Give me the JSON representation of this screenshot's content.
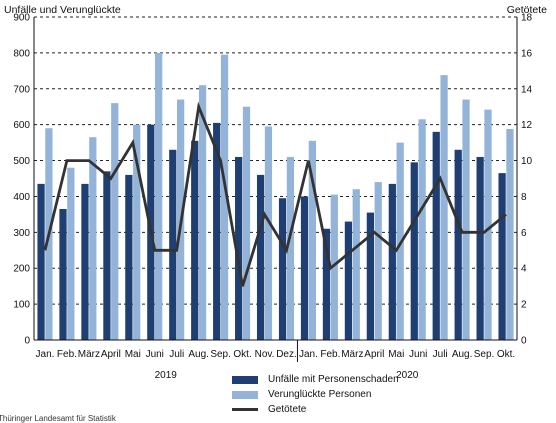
{
  "chart_data": {
    "type": "bar",
    "left_axis_title": "Unfälle und Verunglückte",
    "right_axis_title": "Getötete",
    "categories": [
      "Jan.",
      "Feb.",
      "März",
      "April",
      "Mai",
      "Juni",
      "Juli",
      "Aug.",
      "Sep.",
      "Okt.",
      "Nov.",
      "Dez.",
      "Jan.",
      "Feb.",
      "März",
      "April",
      "Mai",
      "Juni",
      "Juli",
      "Aug.",
      "Sep.",
      "Okt."
    ],
    "years": [
      {
        "label": "2019",
        "start_index": 0,
        "end_index": 11
      },
      {
        "label": "2020",
        "start_index": 12,
        "end_index": 21
      }
    ],
    "ylim": [
      0,
      900
    ],
    "yticks": [
      0,
      100,
      200,
      300,
      400,
      500,
      600,
      700,
      800,
      900
    ],
    "y2lim": [
      0,
      18
    ],
    "y2ticks": [
      0,
      2,
      4,
      6,
      8,
      10,
      12,
      14,
      16,
      18
    ],
    "grid": true,
    "legend_position": "bottom",
    "series": [
      {
        "name": "Unfälle mit Personenschaden",
        "type": "bar",
        "axis": "left",
        "color": "#1f3f73",
        "values": [
          435,
          365,
          435,
          470,
          460,
          600,
          530,
          555,
          605,
          510,
          460,
          395,
          400,
          310,
          330,
          355,
          435,
          495,
          580,
          530,
          510,
          465
        ]
      },
      {
        "name": "Verunglückte Personen",
        "type": "bar",
        "axis": "left",
        "color": "#94b3d8",
        "values": [
          590,
          480,
          565,
          660,
          600,
          800,
          670,
          710,
          795,
          650,
          595,
          510,
          555,
          405,
          420,
          440,
          550,
          615,
          738,
          670,
          642,
          588
        ]
      },
      {
        "name": "Getötete",
        "type": "line",
        "axis": "right",
        "color": "#333333",
        "values": [
          5,
          10,
          10,
          9,
          11,
          5,
          5,
          13,
          10,
          3,
          7,
          5,
          10,
          4,
          5,
          6,
          5,
          7,
          9,
          6,
          6,
          7
        ]
      }
    ]
  },
  "source_text": "Thüringer Landesamt für Statistik"
}
